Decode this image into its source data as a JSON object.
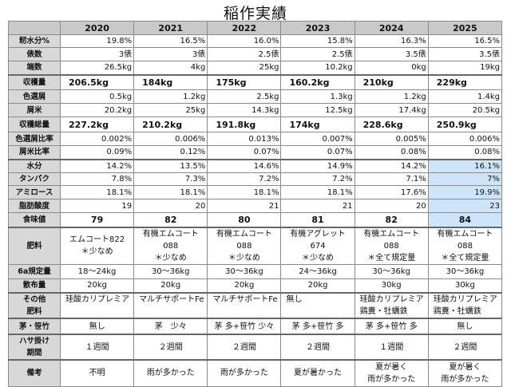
{
  "title": "稲作実績",
  "years": [
    "2020",
    "2021",
    "2022",
    "2023",
    "2024",
    "2025"
  ],
  "highlight_color": "#cde5fa",
  "highlight_column": "2025",
  "rows": [
    {
      "label": "籾水分%",
      "values": [
        "19.8%",
        "16.5%",
        "16.0%",
        "15.8%",
        "16.3%",
        "16.5%"
      ]
    },
    {
      "label": "俵数",
      "values": [
        "3俵",
        "3俵",
        "2.5俵",
        "2.5俵",
        "3.5俵",
        "3.5俵"
      ]
    },
    {
      "label": "端数",
      "values": [
        "26.5kg",
        "4kg",
        "25kg",
        "10.2kg",
        "0kg",
        "19kg"
      ]
    },
    {
      "label": "収穫量",
      "values": [
        "206.5kg",
        "184kg",
        "175kg",
        "160.2kg",
        "210kg",
        "229kg"
      ]
    },
    {
      "label": "色選屑",
      "values": [
        "0.5kg",
        "1.2kg",
        "2.5kg",
        "1.3kg",
        "1.2kg",
        "1.4kg"
      ]
    },
    {
      "label": "屑米",
      "values": [
        "20.2kg",
        "25kg",
        "14.3kg",
        "12.5kg",
        "17.4kg",
        "20.5kg"
      ]
    },
    {
      "label": "収穫総量",
      "values": [
        "227.2kg",
        "210.2kg",
        "191.8kg",
        "174kg",
        "228.6kg",
        "250.9kg"
      ]
    },
    {
      "label": "色選屑比率",
      "values": [
        "0.002%",
        "0.006%",
        "0.013%",
        "0.007%",
        "0.005%",
        "0.006%"
      ]
    },
    {
      "label": "屑米比率",
      "values": [
        "0.09%",
        "0.12%",
        "0.07%",
        "0.07%",
        "0.08%",
        "0.08%"
      ]
    },
    {
      "label": "水分",
      "values": [
        "14.2%",
        "13.5%",
        "14.6%",
        "14.9%",
        "14.2%",
        "16.1%"
      ]
    },
    {
      "label": "タンパク",
      "values": [
        "7.8%",
        "7.3%",
        "7.2%",
        "7.2%",
        "7.1%",
        "7%"
      ]
    },
    {
      "label": "アミロース",
      "values": [
        "18.1%",
        "18.1%",
        "18.1%",
        "18.1%",
        "17.6%",
        "19.9%"
      ]
    },
    {
      "label": "脂肪酸度",
      "values": [
        "19",
        "20",
        "21",
        "21",
        "20",
        "23"
      ]
    },
    {
      "label": "食味値",
      "values": [
        "79",
        "82",
        "80",
        "81",
        "82",
        "84"
      ]
    },
    {
      "label": "肥料",
      "values": [
        "エムコート822\n＊少なめ",
        "有機エムコート088\n＊少なめ",
        "有機エムコート088\n＊少なめ",
        "有機アグレット674\n＊少なめ",
        "有機エムコート088\n＊全て規定量",
        "有機エムコート088\n＊全て規定量"
      ]
    },
    {
      "label": "6a規定量",
      "values": [
        "18〜24kg",
        "30〜36kg",
        "30〜36kg",
        "24〜36kg",
        "30〜36kg",
        "30〜36kg"
      ]
    },
    {
      "label": "散布量",
      "values": [
        "20kg",
        "20kg",
        "20kg",
        "20kg",
        "30kg",
        "30kg"
      ]
    },
    {
      "label": "その他\n肥料",
      "values": [
        "珪酸カリプレミア",
        "マルチサポートFe",
        "マルチサポートFe",
        "無し",
        "珪酸カリプレミア\n鶏糞・牡蠣鉄",
        "珪酸カリプレミア\n鶏糞・牡蠣鉄"
      ]
    },
    {
      "label": "茅・笹竹",
      "values": [
        "無し",
        "茅　少々",
        "茅 多+笹竹 少々",
        "茅 多+笹竹 多",
        "茅 多+笹竹 多",
        "無し"
      ]
    },
    {
      "label": "ハサ掛け\n期間",
      "values": [
        "１週間",
        "２週間",
        "２週間",
        "２週間",
        "１週間",
        "２週間"
      ]
    },
    {
      "label": "備考",
      "values": [
        "不明",
        "雨が多かった",
        "雨が多かった",
        "夏が暑かった",
        "夏が暑く\n雨が多かった",
        "夏が暑く\n雨が多かった"
      ]
    }
  ]
}
